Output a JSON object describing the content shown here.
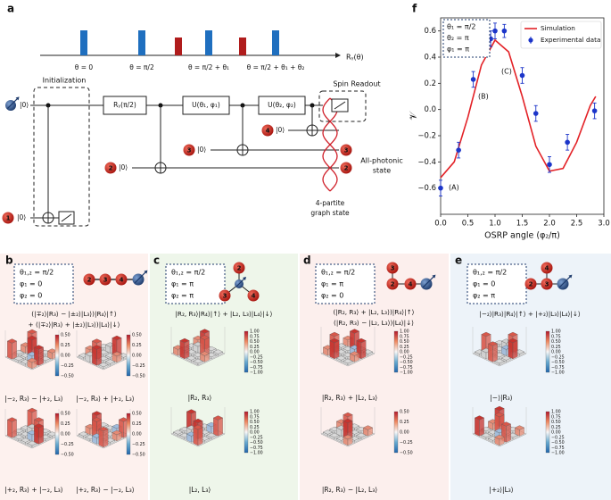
{
  "panel_labels": [
    "a",
    "b",
    "c",
    "d",
    "e",
    "f"
  ],
  "a": {
    "pulse_labels": [
      "θ = 0",
      "θ = π/2",
      "θ = π/2 + θ₁",
      "θ = π/2 + θ₁ + θ₂"
    ],
    "pulse_axis": "Rᵧ(θ)",
    "gates": [
      "Rᵧ(π/2)",
      "U(θ₁, φ₁)",
      "U(θ₂, φ₂)"
    ],
    "initialization": "Initialization",
    "spin_readout": "Spin Readout",
    "kets": [
      "|0⟩",
      "|0⟩",
      "|0⟩",
      "|0⟩",
      "|0⟩"
    ],
    "qubit_nodes": [
      "1",
      "2",
      "3",
      "4"
    ],
    "end_nodes": [
      "3",
      "2"
    ],
    "all_photonic": [
      "All-photonic",
      "state"
    ],
    "graph_state": [
      "4-partite",
      "graph state"
    ]
  },
  "b": {
    "params": [
      "θ₁,₂ = π/2",
      "φ₁ = 0",
      "φ₂ = 0"
    ],
    "nodes": [
      "2",
      "3",
      "4"
    ],
    "formula": [
      "(|∓₂⟩|R₃⟩ − |±₂⟩|L₃⟩)|R₄⟩|↑⟩",
      "+ (|∓₂⟩|R₃⟩ + |±₂⟩|L₃⟩)|L₄⟩|↓⟩"
    ],
    "captions": [
      "|−₂, R₃⟩ − |+₂, L₃⟩",
      "|−₂, R₃⟩ + |+₂, L₃⟩",
      "|+₂, R₃⟩ + |−₂, L₃⟩",
      "|+₂, R₃⟩ − |−₂, L₃⟩"
    ],
    "colorbars": [
      [
        "0.50",
        "0.25",
        "0.00",
        "−0.25",
        "−0.50"
      ],
      [
        "0.50",
        "0.25",
        "0.00",
        "−0.25",
        "−0.50"
      ],
      [
        "0.50",
        "0.25",
        "0.00",
        "−0.25",
        "−0.50"
      ],
      [
        "0.50",
        "0.25",
        "0.00",
        "−0.25",
        "−0.50"
      ]
    ]
  },
  "c": {
    "params": [
      "θ₁,₂ = π/2",
      "φ₁ = π",
      "φ₂ = π"
    ],
    "nodes": [
      "2",
      "3",
      "4"
    ],
    "formula": [
      "|R₂, R₃⟩|R₄⟩|↑⟩ + |L₂, L₃⟩|L₄⟩|↓⟩"
    ],
    "captions": [
      "|R₂, R₃⟩",
      "|L₂, L₃⟩"
    ],
    "colorbars": [
      [
        "1.00",
        "0.75",
        "0.50",
        "0.25",
        "0.00",
        "−0.25",
        "−0.50",
        "−0.75",
        "−1.00"
      ],
      [
        "1.00",
        "0.75",
        "0.50",
        "0.25",
        "0.00",
        "−0.25",
        "−0.50",
        "−0.75",
        "−1.00"
      ]
    ]
  },
  "d": {
    "params": [
      "θ₁,₂ = π/2",
      "φ₁ = π",
      "φ₂ = 0"
    ],
    "nodes": [
      "3",
      "2",
      "4"
    ],
    "formula": [
      "(|R₂, R₃⟩ + |L₂, L₃⟩)|R₄⟩|↑⟩",
      "(|R₂, R₃⟩ − |L₂, L₃⟩)|L₄⟩|↓⟩"
    ],
    "captions": [
      "|R₂, R₃⟩ + |L₂, L₃⟩",
      "|R₂, R₃⟩ − |L₂, L₃⟩"
    ],
    "colorbars": [
      [
        "1.00",
        "0.75",
        "0.50",
        "0.25",
        "0.00",
        "−0.25",
        "−0.50",
        "−0.75",
        "−1.00"
      ],
      [
        "0.50",
        "0.25",
        "0.00",
        "−0.25",
        "−0.50"
      ]
    ]
  },
  "e": {
    "params": [
      "θ₁,₂ = π/2",
      "φ₁ = 0",
      "φ₂ = π"
    ],
    "nodes": [
      "4",
      "3",
      "2"
    ],
    "formula": [
      "|−₂⟩|R₃⟩|R₄⟩|↑⟩ + |+₂⟩|L₃⟩|L₄⟩|↓⟩"
    ],
    "captions": [
      "|−⟩|R₃⟩",
      "|+₂⟩|L₃⟩"
    ],
    "colorbars": [
      [
        "1.00",
        "0.75",
        "0.50",
        "0.25",
        "0.00",
        "−0.25",
        "−0.50",
        "−0.75",
        "−1.00"
      ],
      [
        "1.00",
        "0.75",
        "0.50",
        "0.25",
        "0.00",
        "−0.25",
        "−0.50",
        "−0.75",
        "−1.00"
      ]
    ]
  },
  "chart_data": {
    "type": "line-points",
    "x_label": "OSRP angle (φ₂/π)",
    "y_label": "𝒱",
    "inset": [
      "θ₁ = π/2",
      "θ₂ = π",
      "φ₁ = π"
    ],
    "annotations": [
      "(A)",
      "(B)",
      "(C)"
    ],
    "xlim": [
      0,
      3
    ],
    "ylim": [
      -0.8,
      0.7
    ],
    "xticks": [
      {
        "value": 0,
        "label": "0.0"
      },
      0.5,
      {
        "value": 1,
        "label": "1.0"
      },
      1.5,
      {
        "value": 2,
        "label": "2.0"
      },
      2.5,
      {
        "value": 3,
        "label": "3.0"
      }
    ],
    "yticks": [
      {
        "value": -0.6,
        "label": "−0.6"
      },
      {
        "value": -0.4,
        "label": "−0.4"
      },
      {
        "value": -0.2,
        "label": "−0.2"
      },
      {
        "value": 0,
        "label": "0.0"
      },
      0.2,
      0.4,
      0.6
    ],
    "legend": "upper right",
    "series": [
      {
        "name": "Simulation",
        "color": "#e32227",
        "style": "line",
        "x": [
          0,
          0.25,
          0.5,
          0.75,
          1.0,
          1.25,
          1.5,
          1.75,
          2.0,
          2.25,
          2.5,
          2.75,
          2.85
        ],
        "values": [
          -0.52,
          -0.4,
          -0.06,
          0.34,
          0.53,
          0.44,
          0.1,
          -0.28,
          -0.47,
          -0.45,
          -0.25,
          0.03,
          0.1
        ]
      },
      {
        "name": "Experimental data",
        "color": "#1c35c9",
        "style": "points",
        "x": [
          0,
          0.33,
          0.6,
          0.92,
          1.0,
          1.17,
          1.5,
          1.75,
          2.0,
          2.33,
          2.83
        ],
        "values": [
          -0.6,
          -0.31,
          0.23,
          0.54,
          0.6,
          0.6,
          0.26,
          -0.03,
          -0.42,
          -0.25,
          -0.01
        ],
        "errors": [
          0.06,
          0.06,
          0.06,
          0.06,
          0.06,
          0.05,
          0.06,
          0.06,
          0.06,
          0.06,
          0.06
        ]
      }
    ]
  }
}
